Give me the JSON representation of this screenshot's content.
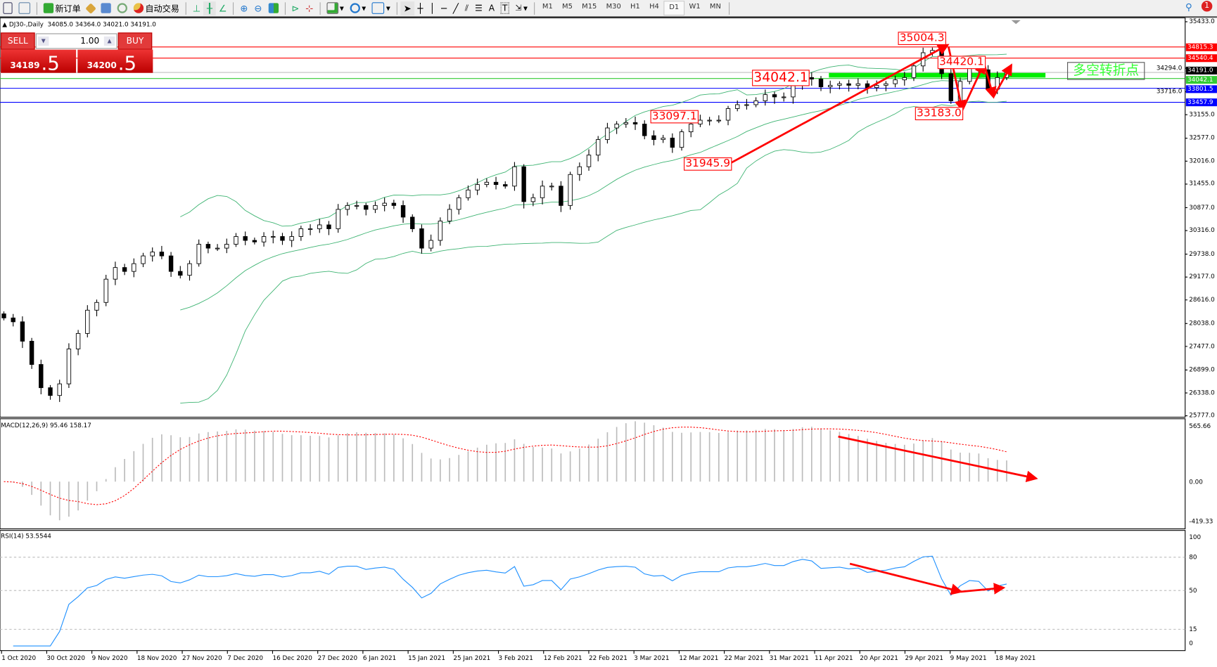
{
  "toolbar": {
    "new_order": "新订单",
    "auto_trading": "自动交易",
    "timeframes": [
      "M1",
      "M5",
      "M15",
      "M30",
      "H1",
      "H4",
      "D1",
      "W1",
      "MN"
    ],
    "active_timeframe": "D1",
    "notification_count": "1"
  },
  "chart_header": {
    "symbol": "DJ30-,Daily",
    "ohlc": "34085.0 34364.0 34021.0 34191.0"
  },
  "one_click": {
    "sell_label": "SELL",
    "buy_label": "BUY",
    "lot": "1.00",
    "bid_main": "34189",
    "bid_frac": ".5",
    "ask_main": "34200",
    "ask_frac": ".5"
  },
  "chart_data": {
    "type": "candlestick",
    "symbol": "DJ30-",
    "timeframe": "Daily",
    "closes": [
      28175,
      28080,
      27605,
      27035,
      26465,
      26275,
      26560,
      27415,
      27795,
      28365,
      28555,
      29125,
      29410,
      29315,
      29505,
      29695,
      29790,
      29695,
      29315,
      29220,
      29505,
      29980,
      29885,
      29885,
      29980,
      30170,
      30075,
      30037,
      30170,
      30170,
      30075,
      30170,
      30360,
      30360,
      30455,
      30360,
      30835,
      30930,
      30930,
      30835,
      30930,
      30987,
      30930,
      30645,
      30360,
      29885,
      30075,
      30550,
      30835,
      31120,
      31310,
      31443,
      31500,
      31443,
      31405,
      31880,
      31025,
      31120,
      31405,
      31405,
      30930,
      31690,
      31880,
      32165,
      32545,
      32830,
      32925,
      32963,
      32925,
      32640,
      32545,
      32583,
      32355,
      32735,
      32925,
      33020,
      33020,
      33020,
      33305,
      33400,
      33400,
      33495,
      33647,
      33590,
      33590,
      33875,
      34065,
      34027,
      33837,
      33875,
      33913,
      33875,
      33913,
      33818,
      33875,
      33913,
      34008,
      34065,
      34350,
      34673,
      34730,
      34160,
      33495,
      33970,
      34293,
      34255,
      33780,
      34065,
      34191
    ],
    "ylim": [
      25777.0,
      35433.0
    ],
    "price_ticks": [
      "35433.0",
      "34294.0",
      "33716.0",
      "33155.0",
      "32577.0",
      "32016.0",
      "31455.0",
      "30877.0",
      "30316.0",
      "29738.0",
      "29177.0",
      "28616.0",
      "28038.0",
      "27477.0",
      "26899.0",
      "26338.0",
      "25777.0"
    ],
    "price_lines": [
      {
        "value": "34815.3",
        "color": "#ff0000"
      },
      {
        "value": "34540.4",
        "color": "#ff0000"
      },
      {
        "value": "34191.0",
        "color": "#000000",
        "line": "#c0c0c0"
      },
      {
        "value": "34042.1",
        "color": "#33cc33"
      },
      {
        "value": "33801.5",
        "color": "#0000ff"
      },
      {
        "value": "33457.9",
        "color": "#0000ff"
      }
    ],
    "annotations": [
      "35004.3",
      "34420.1",
      "34042.1",
      "33097.1",
      "31945.9",
      "33183.0"
    ],
    "note_text": "多空转折点",
    "dates": [
      "1 Oct 2020",
      "30 Oct 2020",
      "9 Nov 2020",
      "18 Nov 2020",
      "27 Nov 2020",
      "7 Dec 2020",
      "16 Dec 2020",
      "27 Dec 2020",
      "6 Jan 2021",
      "15 Jan 2021",
      "25 Jan 2021",
      "3 Feb 2021",
      "12 Feb 2021",
      "22 Feb 2021",
      "3 Mar 2021",
      "12 Mar 2021",
      "22 Mar 2021",
      "31 Mar 2021",
      "11 Apr 2021",
      "20 Apr 2021",
      "29 Apr 2021",
      "9 May 2021",
      "18 May 2021"
    ],
    "indicators": {
      "bollinger": {
        "color": "#3cb371"
      },
      "macd": {
        "label": "MACD(12,26,9) 95.46 158.17",
        "ticks": [
          "565.66",
          "0.00",
          "-419.33"
        ],
        "ylim": [
          -419.33,
          565.66
        ],
        "hist_color": "#bbbbbb",
        "signal_color": "#ff0000"
      },
      "rsi": {
        "label": "RSI(14) 53.5544",
        "ticks": [
          "100",
          "80",
          "50",
          "15",
          "0"
        ],
        "levels": [
          80,
          50,
          15
        ],
        "ylim": [
          0,
          100
        ],
        "color": "#1e90ff"
      }
    },
    "colors": {
      "bull": "#ffffff",
      "bear": "#000000",
      "arrow": "#ff0000",
      "pivot_zone": "#00ee00"
    }
  }
}
